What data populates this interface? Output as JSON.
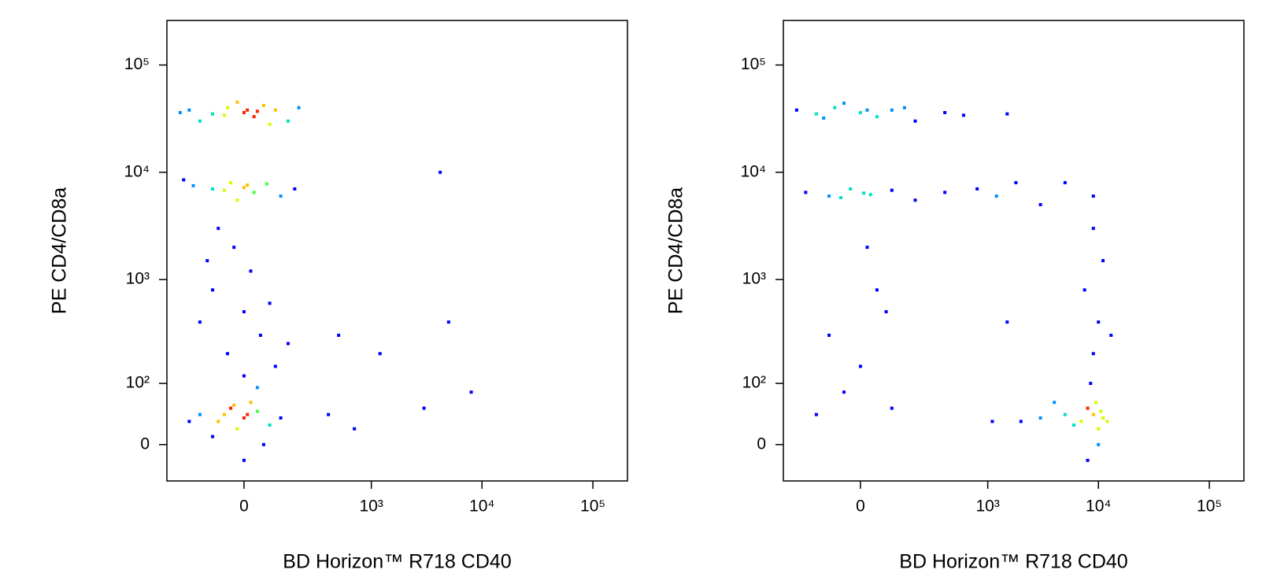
{
  "chart_data": [
    {
      "type": "scatter",
      "x_label": "BD Horizon™ R718 CD40",
      "y_label": "PE CD4/CD8a",
      "xlim": [
        -340,
        205000
      ],
      "ylim": [
        -50,
        260000
      ],
      "xticks": [
        0,
        {
          "value": 1000,
          "label": "10³"
        },
        {
          "value": 10000,
          "label": "10⁴"
        },
        {
          "value": 100000,
          "label": "10⁵"
        }
      ],
      "yticks": [
        0,
        {
          "value": 100,
          "label": "10²"
        },
        {
          "value": 1000,
          "label": "10³"
        },
        {
          "value": 10000,
          "label": "10⁴"
        },
        {
          "value": 100000,
          "label": "10⁵"
        }
      ],
      "x": [
        -200,
        -100,
        -50,
        0,
        30,
        60,
        100,
        150,
        -150,
        -20,
        10,
        -60,
        40,
        200,
        -250,
        80,
        -180,
        -100,
        -40,
        0,
        30,
        70,
        120,
        -60,
        10,
        -20,
        180,
        -230,
        -100,
        0,
        50,
        -50,
        100,
        -150,
        20,
        -30,
        80,
        -80,
        150,
        0,
        -120,
        40,
        -150,
        -80,
        -40,
        0,
        40,
        -20,
        20,
        -60,
        80,
        -100,
        10,
        -30,
        120,
        -200,
        60,
        0,
        500,
        1200,
        4200,
        5000,
        3000,
        700,
        8000,
        400
      ],
      "y": [
        38000,
        35000,
        40000,
        36000,
        33000,
        42000,
        38000,
        30000,
        30000,
        45000,
        38000,
        34000,
        37000,
        40000,
        36000,
        28000,
        7500,
        7000,
        8000,
        7200,
        6500,
        7800,
        6000,
        6800,
        7600,
        5500,
        7000,
        8500,
        800,
        500,
        300,
        200,
        150,
        400,
        1200,
        2000,
        600,
        3000,
        250,
        120,
        1500,
        90,
        40,
        30,
        50,
        35,
        45,
        20,
        60,
        40,
        25,
        10,
        40,
        55,
        35,
        30,
        0,
        -20,
        300,
        200,
        10000,
        400,
        50,
        20,
        80,
        40
      ]
    },
    {
      "type": "scatter",
      "x_label": "BD Horizon™ R718 CD40",
      "y_label": "PE CD4/CD8a",
      "xlim": [
        -340,
        205000
      ],
      "ylim": [
        -50,
        260000
      ],
      "xticks": [
        0,
        {
          "value": 1000,
          "label": "10³"
        },
        {
          "value": 10000,
          "label": "10⁴"
        },
        {
          "value": 100000,
          "label": "10⁵"
        }
      ],
      "yticks": [
        0,
        {
          "value": 100,
          "label": "10²"
        },
        {
          "value": 1000,
          "label": "10³"
        },
        {
          "value": 10000,
          "label": "10⁴"
        },
        {
          "value": 100000,
          "label": "10⁵"
        }
      ],
      "x": [
        -250,
        -150,
        -80,
        0,
        50,
        100,
        200,
        400,
        -50,
        20,
        -120,
        150,
        600,
        1500,
        -200,
        -100,
        -30,
        30,
        100,
        200,
        400,
        800,
        -60,
        10,
        1200,
        1800,
        -100,
        0,
        50,
        -50,
        100,
        -150,
        20,
        80,
        7000,
        9000,
        10000,
        8000,
        11000,
        6000,
        9500,
        12000,
        5000,
        3000,
        2000,
        10000,
        8500,
        9000,
        10000,
        7500,
        11000,
        9000,
        13000,
        4000,
        8000,
        10500,
        1100,
        5000,
        9000,
        1500,
        3000
      ],
      "y": [
        38000,
        35000,
        40000,
        36000,
        33000,
        38000,
        30000,
        36000,
        44000,
        38000,
        32000,
        40000,
        34000,
        35000,
        6500,
        6000,
        7000,
        6200,
        6800,
        5500,
        6500,
        7000,
        5800,
        6400,
        6000,
        8000,
        300,
        150,
        800,
        80,
        50,
        40,
        2000,
        500,
        30,
        40,
        20,
        50,
        35,
        25,
        60,
        30,
        40,
        35,
        30,
        0,
        100,
        200,
        400,
        800,
        1500,
        3000,
        300,
        60,
        -20,
        45,
        30,
        8000,
        6000,
        400,
        5000
      ]
    }
  ]
}
